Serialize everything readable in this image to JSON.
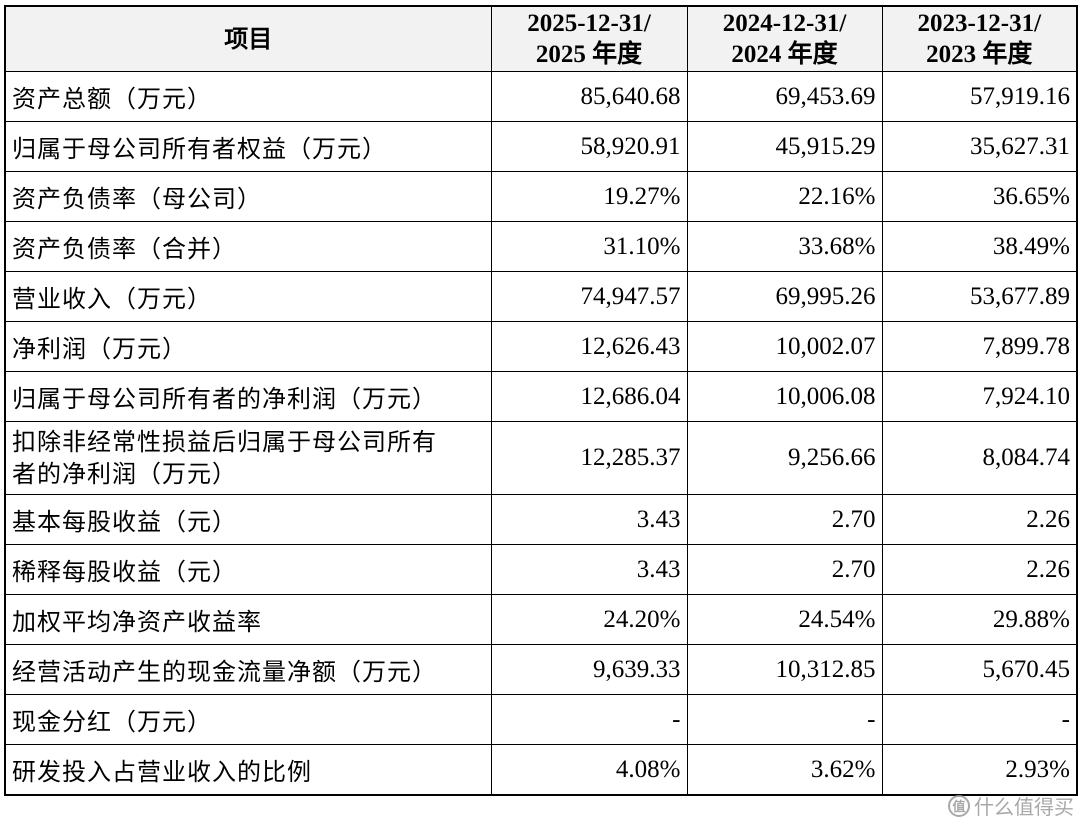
{
  "table": {
    "headers": [
      {
        "line1": "项目",
        "line2": ""
      },
      {
        "line1": "2025-12-31/",
        "line2": "2025 年度"
      },
      {
        "line1": "2024-12-31/",
        "line2": "2024 年度"
      },
      {
        "line1": "2023-12-31/",
        "line2": "2023 年度"
      }
    ],
    "rows": [
      {
        "label": "资产总额（万元）",
        "values": [
          "85,640.68",
          "69,453.69",
          "57,919.16"
        ]
      },
      {
        "label": "归属于母公司所有者权益（万元）",
        "values": [
          "58,920.91",
          "45,915.29",
          "35,627.31"
        ]
      },
      {
        "label": "资产负债率（母公司）",
        "values": [
          "19.27%",
          "22.16%",
          "36.65%"
        ]
      },
      {
        "label": "资产负债率（合并）",
        "values": [
          "31.10%",
          "33.68%",
          "38.49%"
        ]
      },
      {
        "label": "营业收入（万元）",
        "values": [
          "74,947.57",
          "69,995.26",
          "53,677.89"
        ]
      },
      {
        "label": "净利润（万元）",
        "values": [
          "12,626.43",
          "10,002.07",
          "7,899.78"
        ]
      },
      {
        "label": "归属于母公司所有者的净利润（万元）",
        "values": [
          "12,686.04",
          "10,006.08",
          "7,924.10"
        ]
      },
      {
        "label": "扣除非经常性损益后归属于母公司所有者的净利润（万元）",
        "label_line1": "扣除非经常性损益后归属于母公司所有",
        "label_line2": "者的净利润（万元）",
        "values": [
          "12,285.37",
          "9,256.66",
          "8,084.74"
        ]
      },
      {
        "label": "基本每股收益（元）",
        "values": [
          "3.43",
          "2.70",
          "2.26"
        ]
      },
      {
        "label": "稀释每股收益（元）",
        "values": [
          "3.43",
          "2.70",
          "2.26"
        ]
      },
      {
        "label": "加权平均净资产收益率",
        "values": [
          "24.20%",
          "24.54%",
          "29.88%"
        ]
      },
      {
        "label": "经营活动产生的现金流量净额（万元）",
        "values": [
          "9,639.33",
          "10,312.85",
          "5,670.45"
        ]
      },
      {
        "label": "现金分红（万元）",
        "values": [
          "-",
          "-",
          "-"
        ]
      },
      {
        "label": "研发投入占营业收入的比例",
        "values": [
          "4.08%",
          "3.62%",
          "2.93%"
        ]
      }
    ]
  },
  "watermark": {
    "logo_glyph": "值",
    "text": "什么值得买"
  }
}
